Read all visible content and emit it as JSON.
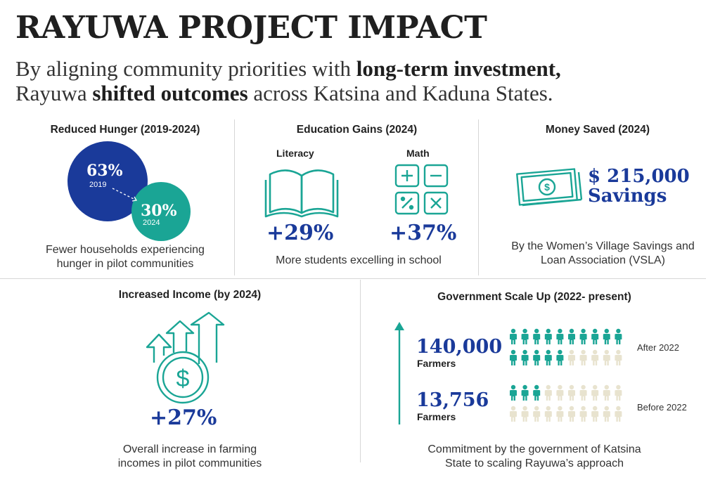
{
  "header": {
    "title": "RAYUWA PROJECT IMPACT",
    "subtitle_line1_pre": "By aligning community priorities with ",
    "subtitle_line1_bold": "long-term investment,",
    "subtitle_line2_pre": "Rayuwa ",
    "subtitle_line2_bold": "shifted outcomes",
    "subtitle_line2_post": " across Katsina and Kaduna States."
  },
  "colors": {
    "navy": "#1a3a9a",
    "teal": "#1aa595",
    "beige": "#e8e3cf",
    "divider": "#d6d6d6"
  },
  "hunger": {
    "title": "Reduced Hunger (2019-2024)",
    "value_2019": "63%",
    "year_2019": "2019",
    "value_2024": "30%",
    "year_2024": "2024",
    "caption": "Fewer households experiencing hunger in pilot communities"
  },
  "education": {
    "title": "Education Gains (2024)",
    "literacy_label": "Literacy",
    "literacy_value": "+29%",
    "literacy_icon": "open-book-icon",
    "math_label": "Math",
    "math_value": "+37%",
    "math_icon": "calculator-keys-icon",
    "caption": "More students excelling in school"
  },
  "money": {
    "title": "Money Saved (2024)",
    "amount": "$ 215,000",
    "amount_label": "Savings",
    "icon": "banknotes-icon",
    "caption": "By the Women’s Village Savings and Loan Association (VSLA)"
  },
  "income": {
    "title": "Increased Income (by 2024)",
    "value": "+27%",
    "icon": "rising-arrows-coin-icon",
    "caption": "Overall increase in farming incomes in pilot communities"
  },
  "government": {
    "title": "Government Scale Up (2022- present)",
    "after_value": "140,000",
    "after_unit": "Farmers",
    "after_label": "After 2022",
    "after_highlighted": 15,
    "after_total": 20,
    "before_value": "13,756",
    "before_unit": "Farmers",
    "before_label": "Before 2022",
    "before_highlighted": 3,
    "before_total": 20,
    "caption": "Commitment by the government of Katsina State to scaling Rayuwa’s approach"
  }
}
